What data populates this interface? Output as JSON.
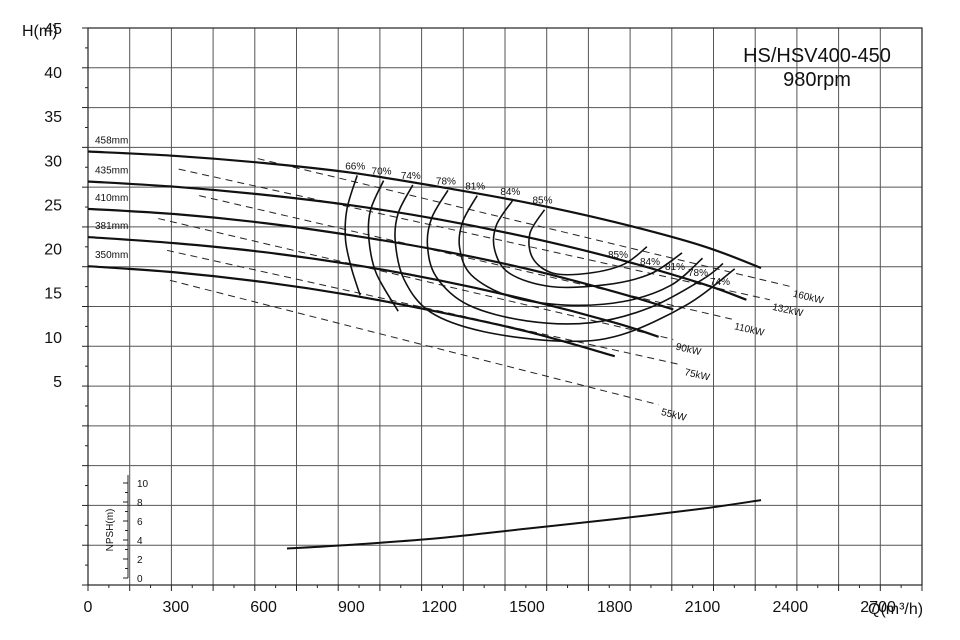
{
  "chart_data": {
    "type": "line",
    "title": "HS/HSV400-450",
    "subtitle": "980rpm",
    "xlabel": "Q(m³/h)",
    "ylabel": "H(m)",
    "xlim": [
      0,
      2850
    ],
    "ylim": [
      0,
      45
    ],
    "x_ticks": [
      "0",
      "300",
      "600",
      "900",
      "1200",
      "1500",
      "1800",
      "2100",
      "2400",
      "2700"
    ],
    "y_ticks": [
      "5",
      "10",
      "15",
      "20",
      "25",
      "30",
      "35",
      "40",
      "45"
    ],
    "grid": true,
    "head_curves": [
      {
        "name": "458mm",
        "points": [
          [
            0,
            31
          ],
          [
            300,
            30.5
          ],
          [
            600,
            29.7
          ],
          [
            900,
            28.6
          ],
          [
            1200,
            27
          ],
          [
            1500,
            25.2
          ],
          [
            1800,
            23
          ],
          [
            2100,
            20.3
          ],
          [
            2300,
            17.8
          ]
        ]
      },
      {
        "name": "435mm",
        "points": [
          [
            0,
            27.6
          ],
          [
            300,
            27
          ],
          [
            600,
            26.1
          ],
          [
            900,
            24.9
          ],
          [
            1200,
            23.3
          ],
          [
            1500,
            21.3
          ],
          [
            1800,
            18.9
          ],
          [
            2100,
            16
          ],
          [
            2250,
            14.2
          ]
        ]
      },
      {
        "name": "410mm",
        "points": [
          [
            0,
            24.5
          ],
          [
            300,
            23.9
          ],
          [
            600,
            22.9
          ],
          [
            900,
            21.5
          ],
          [
            1200,
            19.8
          ],
          [
            1500,
            17.7
          ],
          [
            1800,
            15.1
          ],
          [
            2000,
            13.1
          ]
        ]
      },
      {
        "name": "381mm",
        "points": [
          [
            0,
            21.3
          ],
          [
            300,
            20.6
          ],
          [
            600,
            19.6
          ],
          [
            900,
            18.2
          ],
          [
            1200,
            16.4
          ],
          [
            1500,
            14.2
          ],
          [
            1800,
            11.6
          ],
          [
            1950,
            10
          ]
        ]
      },
      {
        "name": "350mm",
        "points": [
          [
            0,
            18
          ],
          [
            300,
            17.3
          ],
          [
            600,
            16.2
          ],
          [
            900,
            14.7
          ],
          [
            1200,
            12.8
          ],
          [
            1500,
            10.6
          ],
          [
            1800,
            7.8
          ]
        ]
      }
    ],
    "power_lines": [
      {
        "name": "160kW",
        "points": [
          [
            580,
            30.2
          ],
          [
            2400,
            15.7
          ]
        ]
      },
      {
        "name": "132kW",
        "points": [
          [
            310,
            29.0
          ],
          [
            2330,
            14.2
          ]
        ]
      },
      {
        "name": "110kW",
        "points": [
          [
            380,
            26.0
          ],
          [
            2200,
            12.0
          ]
        ]
      },
      {
        "name": "90kW",
        "points": [
          [
            240,
            23.4
          ],
          [
            2000,
            9.7
          ]
        ]
      },
      {
        "name": "75kW",
        "points": [
          [
            270,
            19.8
          ],
          [
            2030,
            6.8
          ]
        ]
      },
      {
        "name": "55kW",
        "points": [
          [
            280,
            16.4
          ],
          [
            1950,
            2.3
          ]
        ]
      }
    ],
    "efficiency_left": [
      {
        "name": "66%",
        "points": [
          [
            920,
            28.3
          ],
          [
            885,
            24.5
          ],
          [
            880,
            21
          ],
          [
            900,
            17.8
          ],
          [
            930,
            14.7
          ]
        ]
      },
      {
        "name": "70%",
        "points": [
          [
            1010,
            27.7
          ],
          [
            965,
            24.3
          ],
          [
            960,
            21
          ],
          [
            985,
            17.2
          ],
          [
            1060,
            12.9
          ]
        ]
      },
      {
        "name": "74%",
        "points": [
          [
            1110,
            27.2
          ],
          [
            1060,
            24
          ],
          [
            1050,
            20.8
          ],
          [
            1080,
            16.5
          ],
          [
            1170,
            12.8
          ],
          [
            1350,
            10.6
          ],
          [
            1620,
            9.5
          ],
          [
            1820,
            10.2
          ],
          [
            2050,
            13.7
          ],
          [
            2210,
            17.7
          ]
        ]
      },
      {
        "name": "78%",
        "points": [
          [
            1230,
            26.6
          ],
          [
            1175,
            23.5
          ],
          [
            1160,
            20.4
          ],
          [
            1190,
            16.8
          ],
          [
            1300,
            13.6
          ],
          [
            1500,
            11.8
          ],
          [
            1720,
            11.6
          ],
          [
            1920,
            13.3
          ],
          [
            2100,
            16.5
          ],
          [
            2170,
            18.3
          ]
        ]
      },
      {
        "name": "81%",
        "points": [
          [
            1330,
            26
          ],
          [
            1280,
            23
          ],
          [
            1270,
            20.1
          ],
          [
            1310,
            17
          ],
          [
            1440,
            14.6
          ],
          [
            1630,
            13.6
          ],
          [
            1830,
            14
          ],
          [
            1990,
            15.8
          ],
          [
            2100,
            18.9
          ]
        ]
      },
      {
        "name": "84%",
        "points": [
          [
            1450,
            25.4
          ],
          [
            1395,
            22.6
          ],
          [
            1390,
            19.8
          ],
          [
            1440,
            17.2
          ],
          [
            1580,
            15.7
          ],
          [
            1770,
            15.9
          ],
          [
            1920,
            17.1
          ],
          [
            2030,
            19.5
          ]
        ]
      },
      {
        "name": "85%",
        "points": [
          [
            1560,
            24.4
          ],
          [
            1510,
            21.7
          ],
          [
            1520,
            18.9
          ],
          [
            1590,
            17.2
          ],
          [
            1710,
            17.2
          ],
          [
            1830,
            18.2
          ],
          [
            1910,
            20.2
          ]
        ]
      }
    ],
    "efficiency_right_labels": [
      "85%",
      "84%",
      "81%",
      "78%",
      "74%"
    ],
    "npsh": {
      "ylabel": "NPSH(m)",
      "y_ticks": [
        "0",
        "2",
        "4",
        "6",
        "8",
        "10"
      ],
      "ylim": [
        0,
        10
      ],
      "points": [
        [
          680,
          3.1
        ],
        [
          900,
          3.5
        ],
        [
          1200,
          4.2
        ],
        [
          1500,
          5.2
        ],
        [
          1800,
          6.2
        ],
        [
          2100,
          7.3
        ],
        [
          2300,
          8.2
        ]
      ]
    }
  }
}
